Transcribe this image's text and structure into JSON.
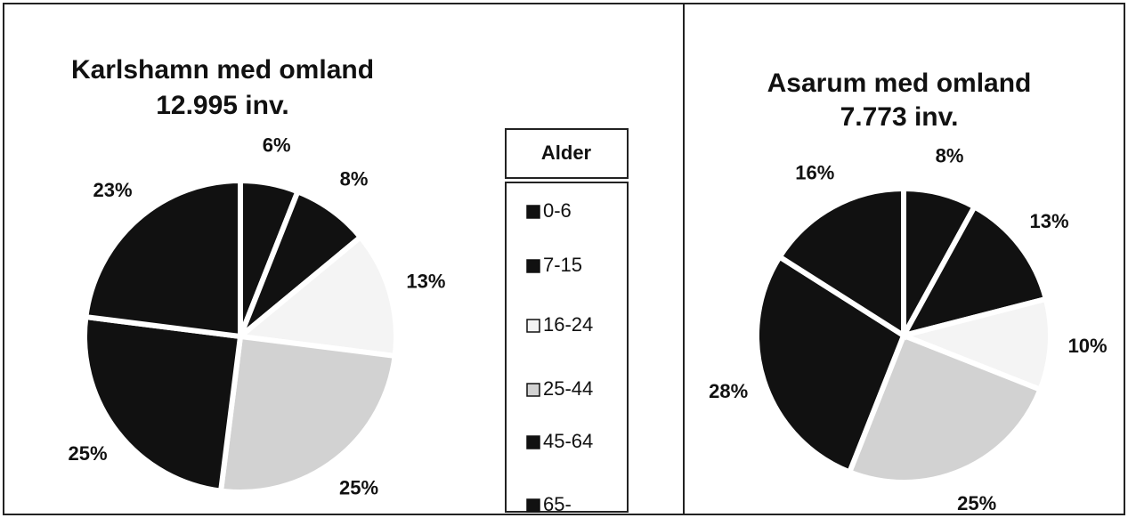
{
  "chart_data": [
    {
      "type": "pie",
      "title": "Karlshamn med omland",
      "subtitle": "12.995 inv.",
      "legend_title": "Alder",
      "categories": [
        "0-6",
        "7-15",
        "16-24",
        "25-44",
        "45-64",
        "65-"
      ],
      "values": [
        6,
        8,
        13,
        25,
        25,
        23
      ],
      "value_labels": [
        "6%",
        "8%",
        "13%",
        "25%",
        "25%",
        "23%"
      ],
      "colors": [
        "#111111",
        "#111111",
        "#f4f4f4",
        "#d2d2d2",
        "#111111",
        "#111111"
      ]
    },
    {
      "type": "pie",
      "title": "Asarum med omland",
      "subtitle": "7.773 inv.",
      "categories": [
        "0-6",
        "7-15",
        "16-24",
        "25-44",
        "45-64",
        "65-"
      ],
      "values": [
        8,
        13,
        10,
        25,
        28,
        16
      ],
      "value_labels": [
        "8%",
        "13%",
        "10%",
        "25%",
        "28%",
        "16%"
      ],
      "colors": [
        "#111111",
        "#111111",
        "#f4f4f4",
        "#d2d2d2",
        "#111111",
        "#111111"
      ]
    }
  ]
}
